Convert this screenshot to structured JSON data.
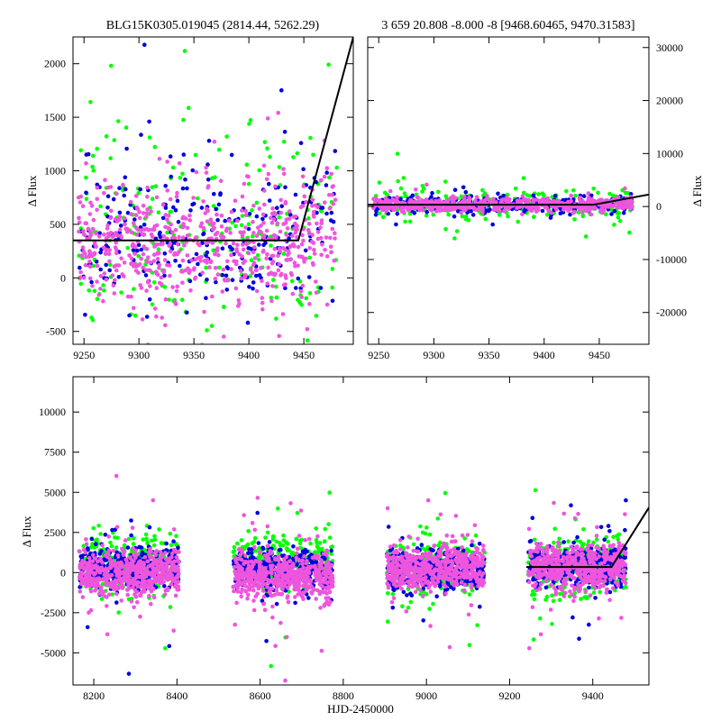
{
  "chart_data": [
    {
      "type": "scatter",
      "title": "BLG15K0305.019045 (2814.44, 5262.29)",
      "xlabel": "",
      "ylabel": "Δ Flux",
      "xlim": [
        9240,
        9495
      ],
      "ylim": [
        -620,
        2250
      ],
      "x_ticks": [
        9250,
        9300,
        9350,
        9400,
        9450
      ],
      "y_ticks": [
        -500,
        0,
        500,
        1000,
        1500,
        2000
      ],
      "series": [
        {
          "color": "#00ff00",
          "x_range": [
            9245,
            9480
          ],
          "center": 380,
          "spread": 520,
          "count": 240
        },
        {
          "color": "#0000dd",
          "x_range": [
            9245,
            9480
          ],
          "center": 380,
          "spread": 360,
          "count": 260
        },
        {
          "color": "#ee55dd",
          "x_range": [
            9245,
            9480
          ],
          "center": 330,
          "spread": 280,
          "count": 620
        }
      ],
      "model_line": {
        "color": "#000000",
        "x": [
          9240,
          9445,
          9495
        ],
        "y": [
          350,
          350,
          2250
        ]
      },
      "grid": false
    },
    {
      "type": "scatter",
      "title": "3 659 20.808 -8.000 -8 [9468.60465, 9470.31583]",
      "xlabel": "",
      "ylabel": "Δ Flux",
      "xlim": [
        9240,
        9495
      ],
      "ylim": [
        -26000,
        32000
      ],
      "x_ticks": [
        9250,
        9300,
        9350,
        9400,
        9450
      ],
      "y_ticks": [
        -20000,
        -10000,
        0,
        10000,
        20000,
        30000
      ],
      "series": [
        {
          "color": "#00ff00",
          "x_range": [
            9245,
            9480
          ],
          "center": 300,
          "spread": 1800,
          "count": 220
        },
        {
          "color": "#0000dd",
          "x_range": [
            9245,
            9480
          ],
          "center": 300,
          "spread": 900,
          "count": 240
        },
        {
          "color": "#ee55dd",
          "x_range": [
            9245,
            9480
          ],
          "center": 300,
          "spread": 600,
          "count": 600
        }
      ],
      "model_line": {
        "color": "#000000",
        "x": [
          9240,
          9445,
          9495
        ],
        "y": [
          350,
          350,
          2250
        ]
      },
      "grid": false
    },
    {
      "type": "scatter",
      "title": "",
      "xlabel": "HJD-2450000",
      "ylabel": "Δ Flux",
      "xlim": [
        8150,
        9535
      ],
      "ylim": [
        -7000,
        12200
      ],
      "x_ticks": [
        8200,
        8400,
        8600,
        8800,
        9000,
        9200,
        9400
      ],
      "y_ticks": [
        -5000,
        -2500,
        0,
        2500,
        5000,
        7500,
        10000
      ],
      "seasons": [
        {
          "x_range": [
            8165,
            8405
          ],
          "green": 600,
          "blue": 300,
          "pink": 0
        },
        {
          "x_range": [
            8535,
            8775
          ],
          "green": 800,
          "blue": 200,
          "pink": -250
        },
        {
          "x_range": [
            8905,
            9140
          ],
          "green": 350,
          "blue": 150,
          "pink": 300
        },
        {
          "x_range": [
            9245,
            9480
          ],
          "green": 380,
          "blue": 380,
          "pink": 330
        }
      ],
      "series": [
        {
          "color": "#00ff00"
        },
        {
          "color": "#0000dd"
        },
        {
          "color": "#ee55dd"
        }
      ],
      "model_line": {
        "color": "#000000",
        "x": [
          9240,
          9445,
          9535
        ],
        "y": [
          350,
          350,
          4050
        ]
      },
      "grid": false
    }
  ]
}
